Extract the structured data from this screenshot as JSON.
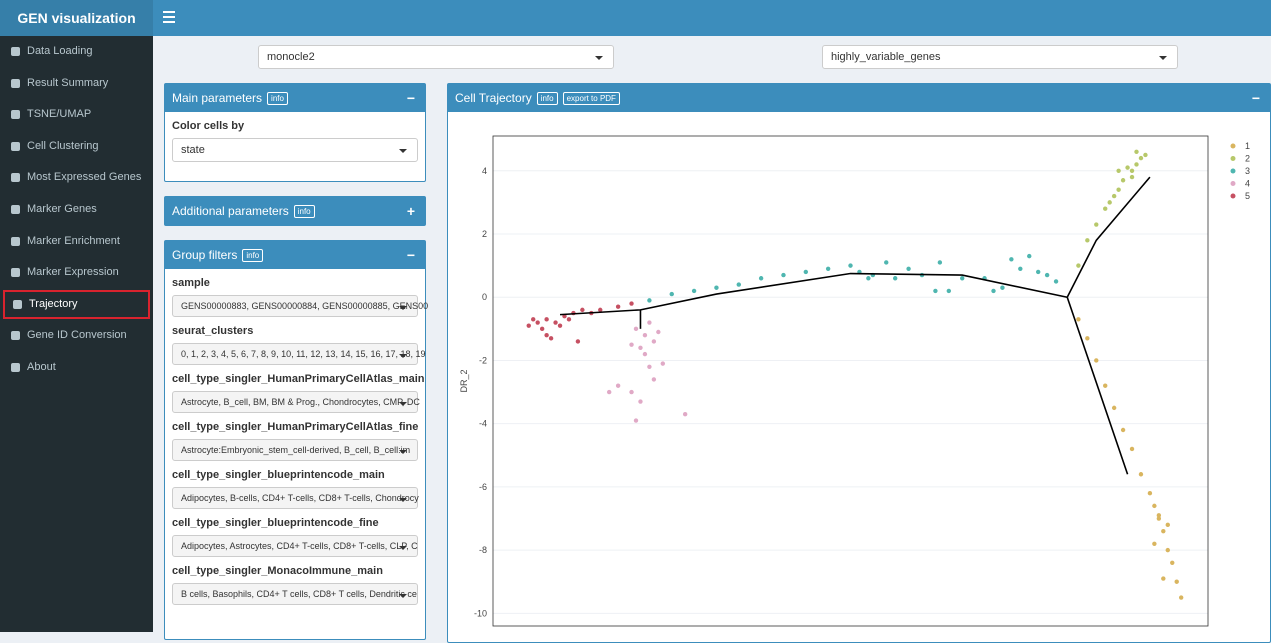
{
  "header": {
    "title": "GEN visualization"
  },
  "sidebar": {
    "active": 8,
    "items": [
      "Data Loading",
      "Result Summary",
      "TSNE/UMAP",
      "Cell Clustering",
      "Most Expressed Genes",
      "Marker Genes",
      "Marker Enrichment",
      "Marker Expression",
      "Trajectory",
      "Gene ID Conversion",
      "About"
    ]
  },
  "top_selects": [
    "monocle2",
    "highly_variable_genes"
  ],
  "main_parameters": {
    "title": "Main parameters",
    "info": "info",
    "label": "Color cells by",
    "select": "state"
  },
  "additional_parameters": {
    "title": "Additional parameters",
    "info": "info"
  },
  "group_filters": {
    "title": "Group filters",
    "info": "info",
    "filters": [
      {
        "label": "sample",
        "value": "GENS00000883, GENS00000884, GENS00000885, GENS00"
      },
      {
        "label": "seurat_clusters",
        "value": "0, 1, 2, 3, 4, 5, 6, 7, 8, 9, 10, 11, 12, 13, 14, 15, 16, 17, 18, 19"
      },
      {
        "label": "cell_type_singler_HumanPrimaryCellAtlas_main",
        "value": "Astrocyte, B_cell, BM, BM & Prog., Chondrocytes, CMP, DC"
      },
      {
        "label": "cell_type_singler_HumanPrimaryCellAtlas_fine",
        "value": "Astrocyte:Embryonic_stem_cell-derived, B_cell, B_cell:im"
      },
      {
        "label": "cell_type_singler_blueprintencode_main",
        "value": "Adipocytes, B-cells, CD4+ T-cells, CD8+ T-cells, Chondrocy"
      },
      {
        "label": "cell_type_singler_blueprintencode_fine",
        "value": "Adipocytes, Astrocytes, CD4+ T-cells, CD8+ T-cells, CLP, C"
      },
      {
        "label": "cell_type_singler_MonacoImmune_main",
        "value": "B cells, Basophils, CD4+ T cells, CD8+ T cells, Dendritic ce"
      }
    ]
  },
  "plot_panel": {
    "title": "Cell Trajectory",
    "info": "info",
    "export": "export to PDF"
  },
  "chart_data": {
    "type": "scatter",
    "ylabel": "DR_2",
    "xlim": [
      -8,
      8
    ],
    "ylim": [
      -10.4,
      5.1
    ],
    "yticks": [
      4,
      2,
      0,
      -2,
      -4,
      -6,
      -8,
      -10
    ],
    "grid": true,
    "legend": "top-right",
    "series": [
      {
        "name": "1",
        "color": "#d9b55f",
        "x": [
          5.1,
          5.3,
          5.5,
          5.7,
          5.9,
          6.1,
          6.3,
          6.5,
          6.7,
          6.8,
          6.9,
          7.0,
          6.8,
          7.1,
          7.2,
          7.0,
          7.3,
          7.4,
          6.9,
          7.1
        ],
        "y": [
          -0.7,
          -1.3,
          -2.0,
          -2.8,
          -3.5,
          -4.2,
          -4.8,
          -5.6,
          -6.2,
          -6.6,
          -7.0,
          -7.4,
          -7.8,
          -8.0,
          -8.4,
          -8.9,
          -9.0,
          -9.5,
          -6.9,
          -7.2
        ]
      },
      {
        "name": "2",
        "color": "#b7c86a",
        "x": [
          5.1,
          5.3,
          5.5,
          5.7,
          5.9,
          6.0,
          6.1,
          6.3,
          6.4,
          6.5,
          6.6,
          6.2,
          6.4,
          6.0,
          6.3,
          5.8
        ],
        "y": [
          1.0,
          1.8,
          2.3,
          2.8,
          3.2,
          3.4,
          3.7,
          4.0,
          4.2,
          4.4,
          4.5,
          4.1,
          4.6,
          4.0,
          3.8,
          3.0
        ]
      },
      {
        "name": "3",
        "color": "#4fb6b0",
        "x": [
          -4.5,
          -4,
          -3.5,
          -3,
          -2.5,
          -2,
          -1.5,
          -1,
          -0.5,
          0,
          0.2,
          0.5,
          0.8,
          1,
          1.3,
          1.6,
          2,
          2.2,
          2.5,
          3,
          3.2,
          3.6,
          3.8,
          4,
          4.2,
          4.4,
          4.6,
          3.4,
          1.9,
          0.4
        ],
        "y": [
          -0.1,
          0.1,
          0.2,
          0.3,
          0.4,
          0.6,
          0.7,
          0.8,
          0.9,
          1.0,
          0.8,
          0.7,
          1.1,
          0.6,
          0.9,
          0.7,
          1.1,
          0.2,
          0.6,
          0.6,
          0.2,
          1.2,
          0.9,
          1.3,
          0.8,
          0.7,
          0.5,
          0.3,
          0.2,
          0.6
        ]
      },
      {
        "name": "4",
        "color": "#e0a9c6",
        "x": [
          -4.8,
          -4.6,
          -4.4,
          -4.7,
          -4.5,
          -4.3,
          -4.9,
          -4.6,
          -4.2,
          -4.4,
          -5.2,
          -4.9,
          -5.4,
          -4.7,
          -4.8,
          -3.7,
          -4.5
        ],
        "y": [
          -1.0,
          -1.2,
          -1.4,
          -1.6,
          -0.8,
          -1.1,
          -1.5,
          -1.8,
          -2.1,
          -2.6,
          -2.8,
          -3.0,
          -3.0,
          -3.3,
          -3.9,
          -3.7,
          -2.2
        ]
      },
      {
        "name": "5",
        "color": "#c65062",
        "x": [
          -7.2,
          -7.0,
          -6.8,
          -6.6,
          -6.4,
          -6.2,
          -6.9,
          -7.1,
          -6.5,
          -6.3,
          -6.7,
          -6.0,
          -5.6,
          -5.2,
          -4.9,
          -6.1,
          -6.8,
          -5.8
        ],
        "y": [
          -0.9,
          -0.8,
          -0.7,
          -0.8,
          -0.6,
          -0.5,
          -1.0,
          -0.7,
          -0.9,
          -0.7,
          -1.3,
          -0.4,
          -0.4,
          -0.3,
          -0.2,
          -1.4,
          -1.2,
          -0.5
        ]
      }
    ],
    "trajectory": [
      {
        "x": [
          -6.5,
          -4.7,
          -3,
          0,
          2.5,
          4.85
        ],
        "y": [
          -0.55,
          -0.4,
          0.1,
          0.75,
          0.7,
          0.0
        ]
      },
      {
        "x": [
          -4.7,
          -4.7
        ],
        "y": [
          -0.4,
          -1.0
        ]
      },
      {
        "x": [
          4.85,
          5.5,
          6.7
        ],
        "y": [
          0.0,
          1.8,
          3.8
        ]
      },
      {
        "x": [
          4.85,
          6.2
        ],
        "y": [
          0.0,
          -5.6
        ]
      }
    ]
  }
}
